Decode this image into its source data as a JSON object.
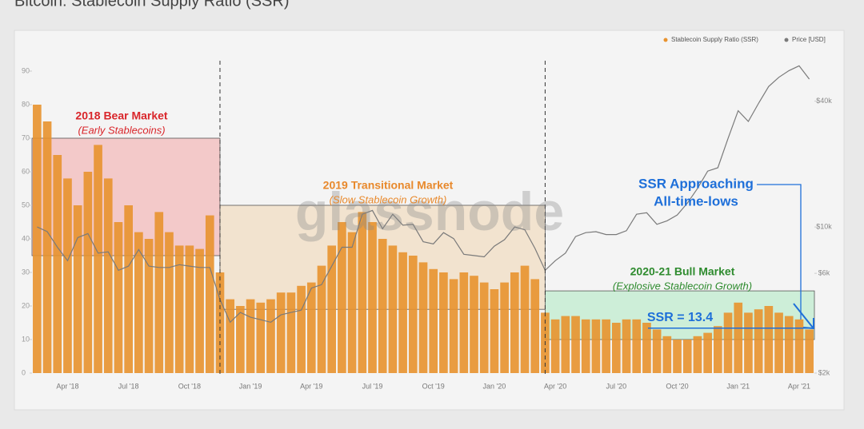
{
  "chart_data": {
    "type": "bar",
    "title": "Bitcoin: Stablecoin Supply Ratio (SSR)",
    "watermark": "glassnode",
    "categories": [
      null,
      null,
      null,
      "Apr '18",
      null,
      null,
      null,
      null,
      null,
      "Jul '18",
      null,
      null,
      null,
      null,
      null,
      "Oct '18",
      null,
      null,
      null,
      null,
      null,
      "Jan '19",
      null,
      null,
      null,
      null,
      null,
      "Apr '19",
      null,
      null,
      null,
      null,
      null,
      "Jul '19",
      null,
      null,
      null,
      null,
      null,
      "Oct '19",
      null,
      null,
      null,
      null,
      null,
      "Jan '20",
      null,
      null,
      null,
      null,
      null,
      "Apr '20",
      null,
      null,
      null,
      null,
      null,
      "Jul '20",
      null,
      null,
      null,
      null,
      null,
      "Oct '20",
      null,
      null,
      null,
      null,
      null,
      "Jan '21",
      null,
      null,
      null,
      null,
      null,
      "Apr '21",
      null
    ],
    "series": [
      {
        "name": "Stablecoin Supply Ratio (SSR)",
        "color": "#e8922e",
        "values": [
          80,
          75,
          65,
          58,
          50,
          60,
          68,
          58,
          45,
          50,
          42,
          40,
          48,
          42,
          38,
          38,
          37,
          47,
          30,
          22,
          20,
          22,
          21,
          22,
          24,
          24,
          26,
          27,
          32,
          38,
          45,
          42,
          48,
          45,
          40,
          38,
          36,
          35,
          33,
          31,
          30,
          28,
          30,
          29,
          27,
          25,
          27,
          30,
          32,
          28,
          18,
          16,
          17,
          17,
          16,
          16,
          16,
          15,
          16,
          16,
          15,
          13,
          11,
          10,
          10,
          11,
          12,
          14,
          18,
          21,
          18,
          19,
          20,
          18,
          17,
          16,
          13
        ]
      },
      {
        "name": "Price [USD]",
        "color": "#7a7a7a",
        "axis": "y2",
        "values": [
          10000,
          9500,
          8000,
          6900,
          8900,
          9300,
          7500,
          7600,
          6200,
          6500,
          7800,
          6500,
          6400,
          6400,
          6600,
          6500,
          6400,
          6400,
          4500,
          3500,
          3900,
          3700,
          3600,
          3500,
          3800,
          3900,
          4000,
          5100,
          5300,
          6500,
          8000,
          8000,
          11500,
          12000,
          9800,
          11500,
          10200,
          10300,
          8500,
          8300,
          9400,
          8800,
          7400,
          7300,
          7200,
          8100,
          8700,
          10000,
          9700,
          7900,
          6200,
          6900,
          7500,
          9000,
          9400,
          9500,
          9200,
          9200,
          9600,
          11500,
          11700,
          10300,
          10700,
          11400,
          13000,
          15300,
          18500,
          19200,
          26500,
          36000,
          32000,
          39000,
          47000,
          52000,
          56000,
          59000,
          51000
        ]
      }
    ],
    "ylim": [
      0,
      95
    ],
    "yticks": [
      0,
      10,
      20,
      30,
      40,
      50,
      60,
      70,
      80,
      90
    ],
    "y2lim": [
      2000,
      67000
    ],
    "y2scale": "log",
    "y2ticks": [
      {
        "value": 2000,
        "label": "$2k"
      },
      {
        "value": 6000,
        "label": "$6k"
      },
      {
        "value": 10000,
        "label": "$10k"
      },
      {
        "value": 40000,
        "label": "$40k"
      }
    ],
    "legend": "top-right",
    "regions": [
      {
        "label": "2018 Bear Market",
        "sublabel": "(Early Stablecoins)",
        "range": [
          35,
          70
        ],
        "color": "#d9252a"
      },
      {
        "label": "2019 Transitional Market",
        "sublabel": "(Slow Stablecoin Growth)",
        "range": [
          19,
          50
        ],
        "color": "#e8892c"
      },
      {
        "label": "2020-21 Bull Market",
        "sublabel": "(Explosive Stablecoin Growth)",
        "range": [
          10,
          24.5
        ],
        "color": "#2e8b2e"
      }
    ],
    "ssr_note": {
      "label": "SSR = 13.4",
      "value": 13.4,
      "color": "#1e6fd9"
    },
    "callout": {
      "lines": [
        "SSR Approaching",
        "All-time-lows"
      ],
      "color": "#1e6fd9"
    }
  }
}
